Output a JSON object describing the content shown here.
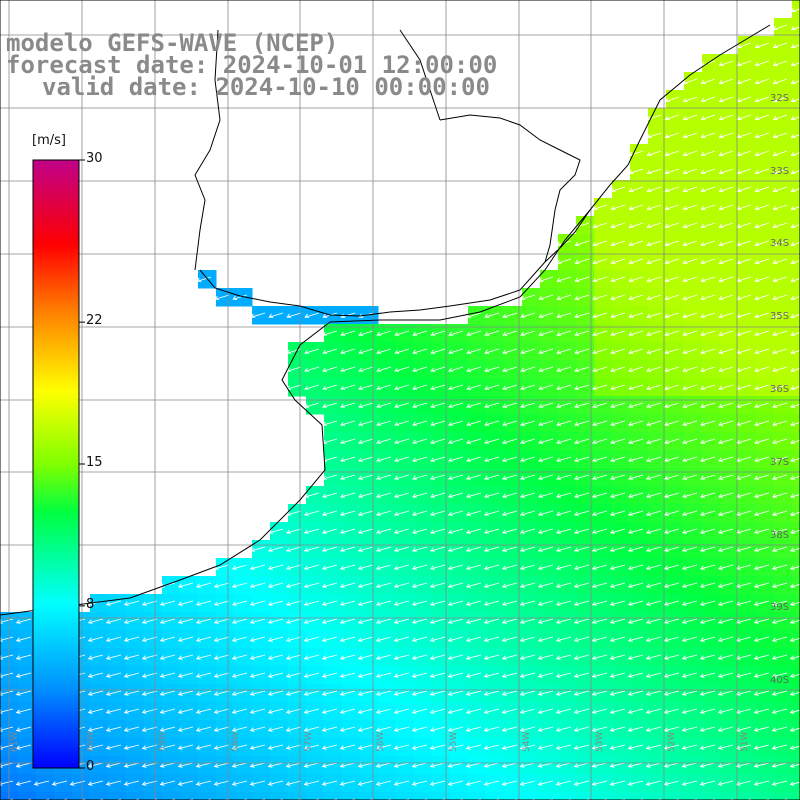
{
  "title": {
    "line1": "modelo GEFS-WAVE (NCEP)",
    "line2": "forecast date: 2024-10-01 12:00:00",
    "line3": "valid date: 2024-10-10 00:00:00"
  },
  "colorbar": {
    "unit": "[m/s]",
    "ticks": [
      {
        "value": 30,
        "label": "30"
      },
      {
        "value": 22,
        "label": "22"
      },
      {
        "value": 15,
        "label": "15"
      },
      {
        "value": 8,
        "label": "8"
      },
      {
        "value": 0,
        "label": "0"
      }
    ],
    "colors": [
      "#0000ff",
      "#00a0ff",
      "#00ffff",
      "#00ff00",
      "#ffff00",
      "#ff8000",
      "#ff0000",
      "#c00080"
    ]
  },
  "lat_labels": [
    "32S",
    "33S",
    "34S",
    "35S",
    "36S",
    "37S",
    "38S",
    "39S",
    "40S"
  ],
  "lon_labels": [
    "61W",
    "60W",
    "59W",
    "58W",
    "57W",
    "56W",
    "55W",
    "54W",
    "53W",
    "52W",
    "51W"
  ],
  "colors": {
    "land": "#ffffff",
    "coast": "#000000",
    "grid": "#888888",
    "arrow": "#ffffff"
  }
}
